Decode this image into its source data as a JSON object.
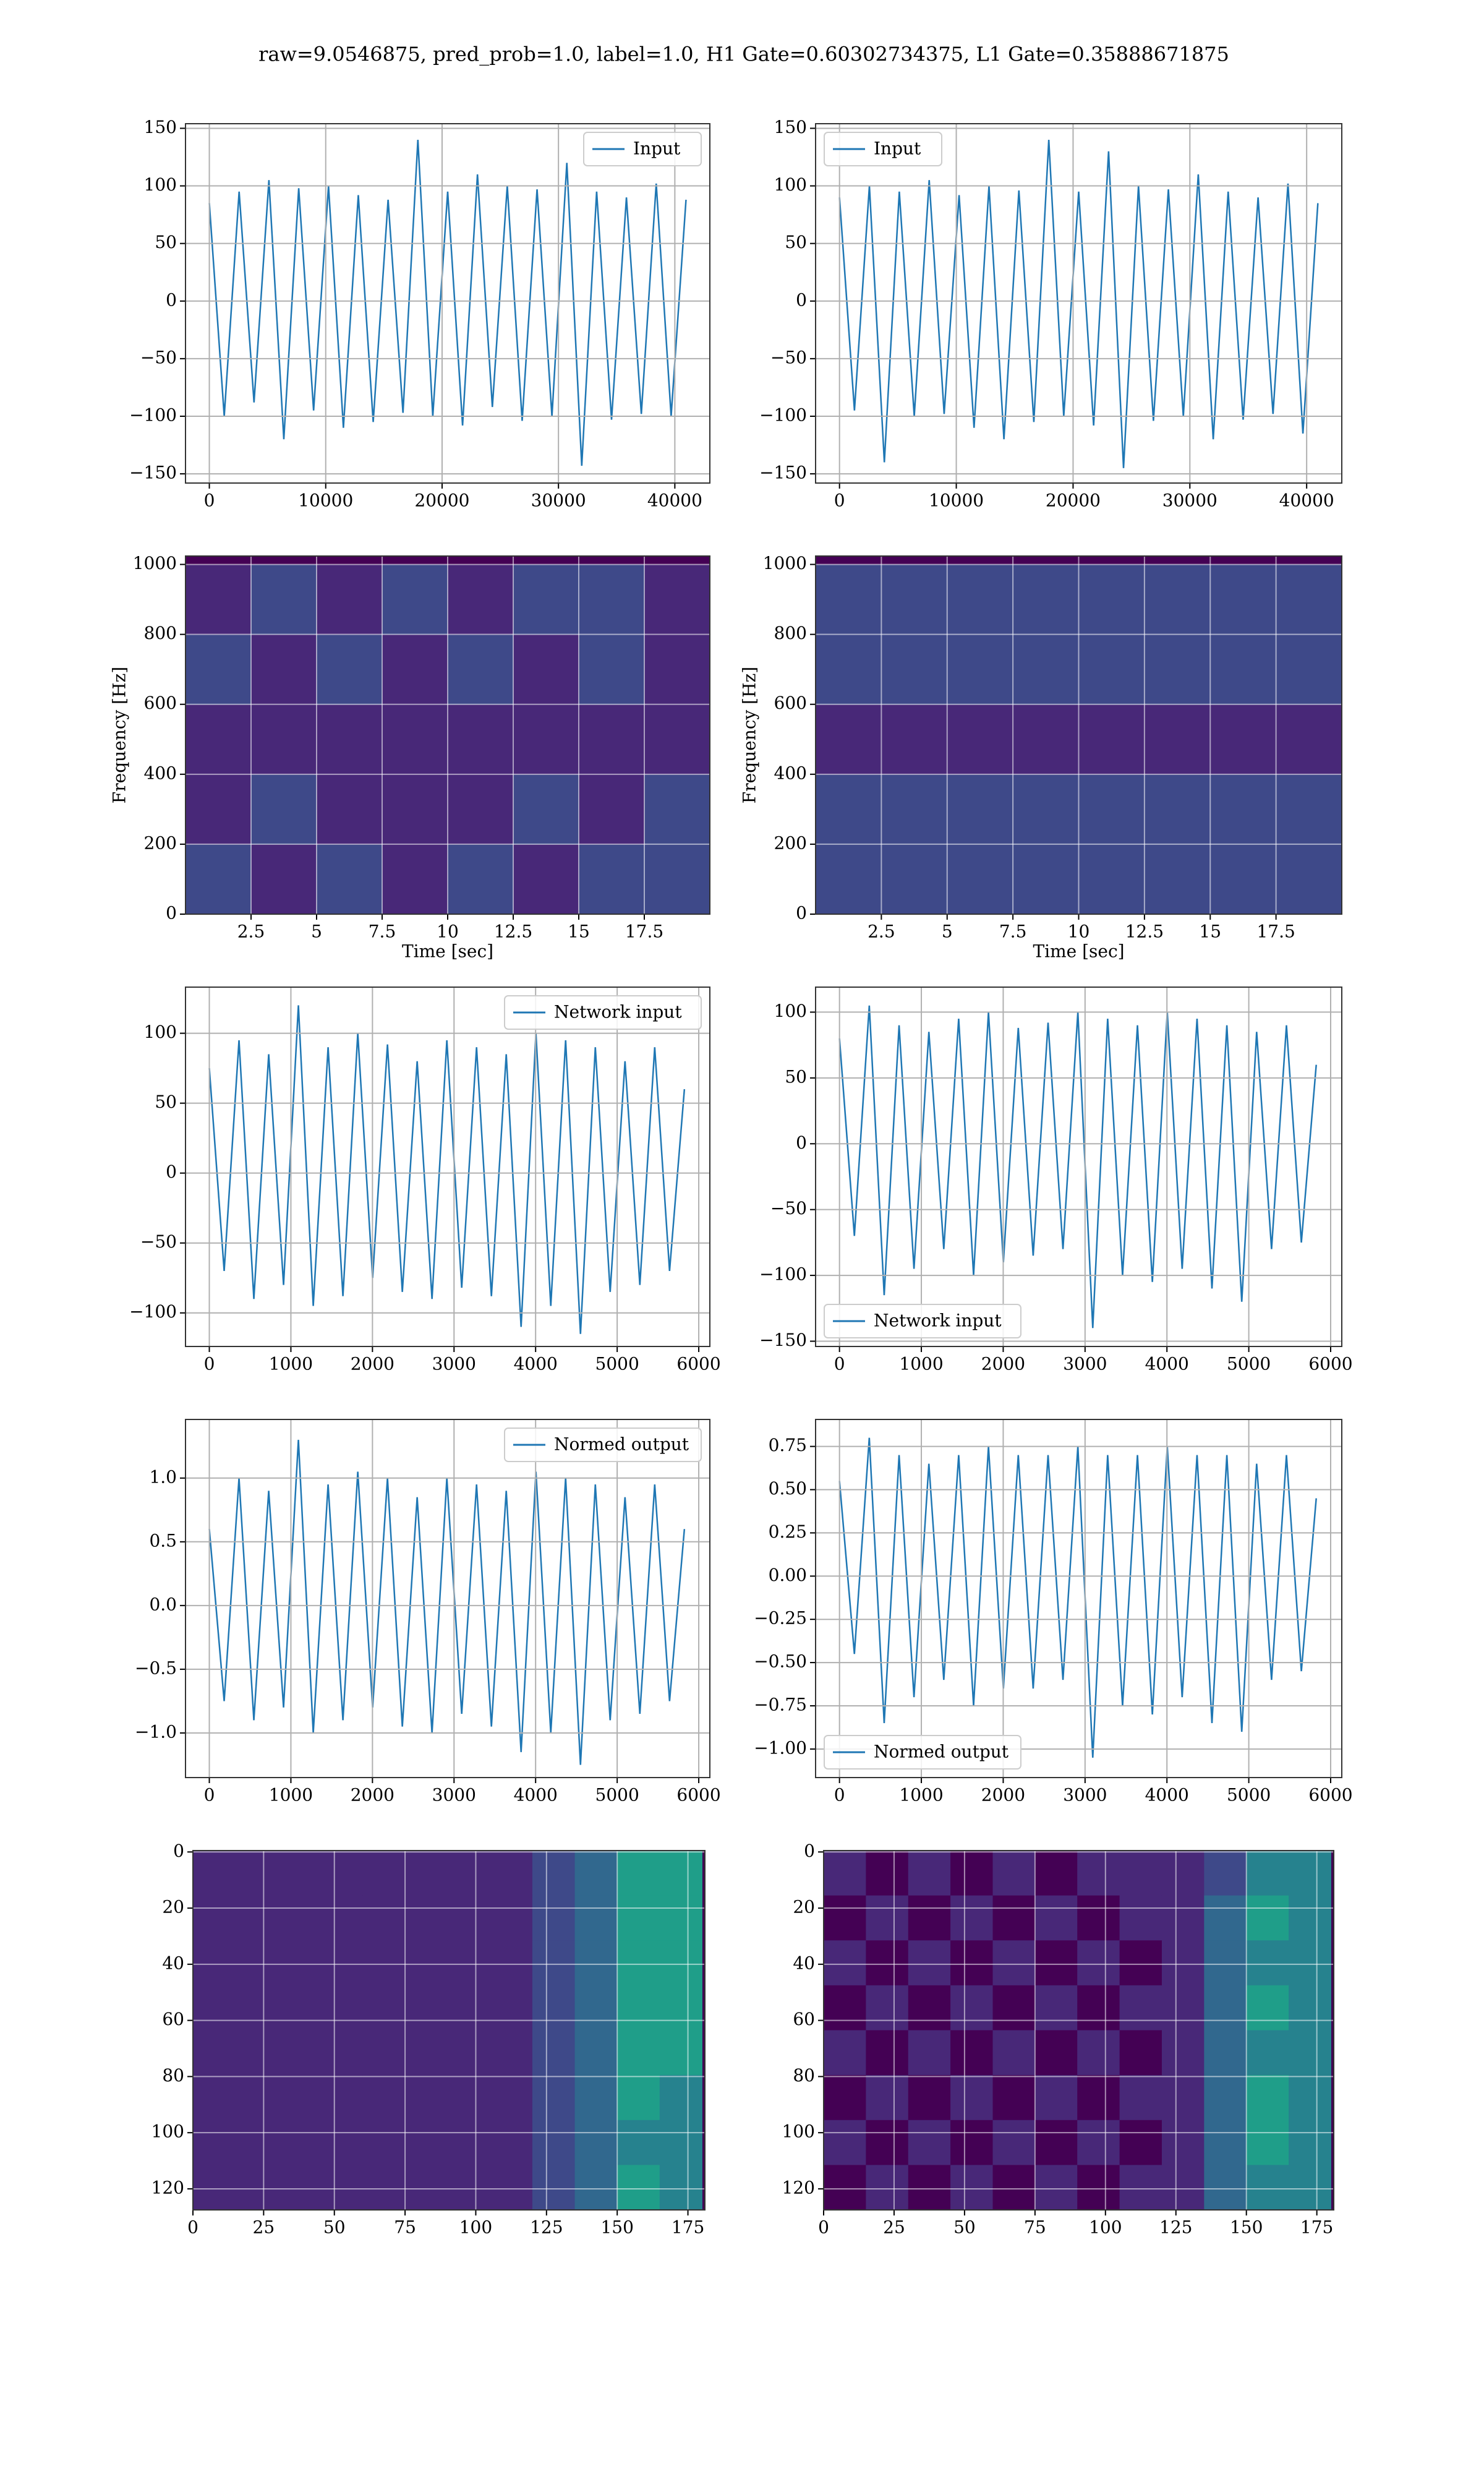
{
  "title": "raw=9.0546875, pred_prob=1.0, label=1.0, H1 Gate=0.60302734375, L1 Gate=0.35888671875",
  "chart_data": [
    {
      "type": "line",
      "legend": "upper right",
      "grid": true,
      "xlim": [
        -2048,
        43008
      ],
      "ylim": [
        -158,
        154
      ],
      "xticks": [
        0,
        10000,
        20000,
        30000,
        40000
      ],
      "yticks": [
        {
          "value": -150,
          "label": "−150"
        },
        {
          "value": -100,
          "label": "−100"
        },
        {
          "value": -50,
          "label": "−50"
        },
        0,
        50,
        100,
        150
      ],
      "x": [
        0,
        1280,
        2560,
        3840,
        5120,
        6400,
        7680,
        8960,
        10240,
        11520,
        12800,
        14080,
        15360,
        16640,
        17920,
        19200,
        20480,
        21760,
        23040,
        24320,
        25600,
        26880,
        28160,
        29440,
        30720,
        32000,
        33280,
        34560,
        35840,
        37120,
        38400,
        39680,
        40960
      ],
      "series": [
        {
          "name": "Input",
          "color": "#1f77b4",
          "values": [
            85,
            -100,
            95,
            -88,
            105,
            -120,
            98,
            -95,
            100,
            -110,
            92,
            -105,
            88,
            -97,
            140,
            -100,
            95,
            -108,
            110,
            -92,
            100,
            -104,
            97,
            -100,
            120,
            -143,
            95,
            -103,
            90,
            -98,
            102,
            -100,
            88
          ]
        }
      ]
    },
    {
      "type": "line",
      "legend": "upper left",
      "grid": true,
      "xlim": [
        -2048,
        43008
      ],
      "ylim": [
        -158,
        154
      ],
      "xticks": [
        0,
        10000,
        20000,
        30000,
        40000
      ],
      "yticks": [
        {
          "value": -150,
          "label": "−150"
        },
        {
          "value": -100,
          "label": "−100"
        },
        {
          "value": -50,
          "label": "−50"
        },
        0,
        50,
        100,
        150
      ],
      "x": [
        0,
        1280,
        2560,
        3840,
        5120,
        6400,
        7680,
        8960,
        10240,
        11520,
        12800,
        14080,
        15360,
        16640,
        17920,
        19200,
        20480,
        21760,
        23040,
        24320,
        25600,
        26880,
        28160,
        29440,
        30720,
        32000,
        33280,
        34560,
        35840,
        37120,
        38400,
        39680,
        40960
      ],
      "series": [
        {
          "name": "Input",
          "color": "#1f77b4",
          "values": [
            90,
            -95,
            100,
            -140,
            95,
            -100,
            105,
            -98,
            92,
            -110,
            100,
            -120,
            96,
            -105,
            140,
            -100,
            95,
            -108,
            130,
            -145,
            100,
            -104,
            97,
            -100,
            110,
            -120,
            95,
            -103,
            90,
            -98,
            102,
            -115,
            85
          ]
        }
      ]
    },
    {
      "type": "heatmap",
      "cmap": "viridis",
      "grid": true,
      "xlabel": "Time [sec]",
      "ylabel": "Frequency [Hz]",
      "xlim": [
        0,
        20
      ],
      "ylim": [
        0,
        1024
      ],
      "zlim": [
        0,
        1
      ],
      "xticks": [
        2.5,
        5.0,
        7.5,
        10.0,
        12.5,
        15.0,
        17.5
      ],
      "yticks": [
        0,
        200,
        400,
        600,
        800,
        1000
      ],
      "x": [
        1.25,
        3.75,
        6.25,
        8.75,
        11.25,
        13.75,
        16.25,
        18.75
      ],
      "y": [
        100,
        300,
        500,
        700,
        900
      ],
      "z": [
        [
          0.18,
          0.16,
          0.17,
          0.15,
          0.17,
          0.16,
          0.18,
          0.22
        ],
        [
          0.16,
          0.17,
          0.15,
          0.16,
          0.15,
          0.17,
          0.16,
          0.18
        ],
        [
          0.14,
          0.13,
          0.14,
          0.13,
          0.14,
          0.13,
          0.14,
          0.14
        ],
        [
          0.17,
          0.16,
          0.17,
          0.16,
          0.18,
          0.16,
          0.17,
          0.16
        ],
        [
          0.16,
          0.17,
          0.16,
          0.17,
          0.16,
          0.18,
          0.17,
          0.16
        ]
      ]
    },
    {
      "type": "heatmap",
      "cmap": "viridis",
      "grid": true,
      "xlabel": "Time [sec]",
      "ylabel": "Frequency [Hz]",
      "xlim": [
        0,
        20
      ],
      "ylim": [
        0,
        1024
      ],
      "zlim": [
        0,
        1
      ],
      "xticks": [
        2.5,
        5.0,
        7.5,
        10.0,
        12.5,
        15.0,
        17.5
      ],
      "yticks": [
        0,
        200,
        400,
        600,
        800,
        1000
      ],
      "x": [
        1.25,
        3.75,
        6.25,
        8.75,
        11.25,
        13.75,
        16.25,
        18.75
      ],
      "y": [
        100,
        300,
        500,
        700,
        900
      ],
      "z": [
        [
          0.19,
          0.18,
          0.17,
          0.18,
          0.17,
          0.19,
          0.2,
          0.26
        ],
        [
          0.18,
          0.19,
          0.17,
          0.18,
          0.17,
          0.19,
          0.2,
          0.19
        ],
        [
          0.14,
          0.15,
          0.14,
          0.15,
          0.14,
          0.15,
          0.14,
          0.15
        ],
        [
          0.18,
          0.2,
          0.18,
          0.17,
          0.18,
          0.19,
          0.2,
          0.18
        ],
        [
          0.17,
          0.19,
          0.18,
          0.19,
          0.18,
          0.2,
          0.19,
          0.18
        ]
      ]
    },
    {
      "type": "line",
      "legend": "upper right",
      "grid": true,
      "xlim": [
        -292,
        6136
      ],
      "ylim": [
        -124,
        133
      ],
      "xticks": [
        0,
        1000,
        2000,
        3000,
        4000,
        5000,
        6000
      ],
      "yticks": [
        {
          "value": -100,
          "label": "−100"
        },
        {
          "value": -50,
          "label": "−50"
        },
        0,
        50,
        100
      ],
      "x": [
        0,
        182,
        364,
        546,
        728,
        910,
        1092,
        1274,
        1456,
        1638,
        1820,
        2002,
        2184,
        2366,
        2548,
        2730,
        2912,
        3094,
        3276,
        3458,
        3640,
        3822,
        4004,
        4186,
        4368,
        4550,
        4732,
        4914,
        5096,
        5278,
        5460,
        5642,
        5824
      ],
      "series": [
        {
          "name": "Network input",
          "color": "#1f77b4",
          "values": [
            75,
            -70,
            95,
            -90,
            85,
            -80,
            120,
            -95,
            90,
            -88,
            100,
            -75,
            92,
            -85,
            80,
            -90,
            95,
            -82,
            90,
            -88,
            85,
            -110,
            100,
            -95,
            95,
            -115,
            90,
            -85,
            80,
            -80,
            90,
            -70,
            60
          ]
        }
      ]
    },
    {
      "type": "line",
      "legend": "lower left",
      "grid": true,
      "xlim": [
        -292,
        6136
      ],
      "ylim": [
        -154,
        119
      ],
      "xticks": [
        0,
        1000,
        2000,
        3000,
        4000,
        5000,
        6000
      ],
      "yticks": [
        {
          "value": -150,
          "label": "−150"
        },
        {
          "value": -100,
          "label": "−100"
        },
        {
          "value": -50,
          "label": "−50"
        },
        0,
        50,
        100
      ],
      "x": [
        0,
        182,
        364,
        546,
        728,
        910,
        1092,
        1274,
        1456,
        1638,
        1820,
        2002,
        2184,
        2366,
        2548,
        2730,
        2912,
        3094,
        3276,
        3458,
        3640,
        3822,
        4004,
        4186,
        4368,
        4550,
        4732,
        4914,
        5096,
        5278,
        5460,
        5642,
        5824
      ],
      "series": [
        {
          "name": "Network input",
          "color": "#1f77b4",
          "values": [
            80,
            -70,
            105,
            -115,
            90,
            -95,
            85,
            -80,
            95,
            -100,
            100,
            -90,
            88,
            -85,
            92,
            -80,
            100,
            -140,
            95,
            -100,
            90,
            -105,
            100,
            -95,
            95,
            -110,
            90,
            -120,
            85,
            -80,
            90,
            -75,
            60
          ]
        }
      ]
    },
    {
      "type": "line",
      "legend": "upper right",
      "grid": true,
      "xlim": [
        -292,
        6136
      ],
      "ylim": [
        -1.35,
        1.46
      ],
      "xticks": [
        0,
        1000,
        2000,
        3000,
        4000,
        5000,
        6000
      ],
      "yticks": [
        {
          "value": -1,
          "label": "−1.0"
        },
        {
          "value": -0.5,
          "label": "−0.5"
        },
        {
          "value": 0,
          "label": "0.0"
        },
        0.5,
        {
          "value": 1,
          "label": "1.0"
        }
      ],
      "x": [
        0,
        182,
        364,
        546,
        728,
        910,
        1092,
        1274,
        1456,
        1638,
        1820,
        2002,
        2184,
        2366,
        2548,
        2730,
        2912,
        3094,
        3276,
        3458,
        3640,
        3822,
        4004,
        4186,
        4368,
        4550,
        4732,
        4914,
        5096,
        5278,
        5460,
        5642,
        5824
      ],
      "series": [
        {
          "name": "Normed output",
          "color": "#1f77b4",
          "values": [
            0.6,
            -0.75,
            1.0,
            -0.9,
            0.9,
            -0.8,
            1.3,
            -1.0,
            0.95,
            -0.9,
            1.05,
            -0.8,
            1.0,
            -0.95,
            0.85,
            -1.0,
            1.0,
            -0.85,
            0.95,
            -0.95,
            0.9,
            -1.15,
            1.05,
            -1.0,
            1.0,
            -1.25,
            0.95,
            -0.9,
            0.85,
            -0.85,
            0.95,
            -0.75,
            0.6
          ]
        }
      ]
    },
    {
      "type": "line",
      "legend": "lower left",
      "grid": true,
      "xlim": [
        -292,
        6136
      ],
      "ylim": [
        -1.165,
        0.906
      ],
      "xticks": [
        0,
        1000,
        2000,
        3000,
        4000,
        5000,
        6000
      ],
      "yticks": [
        {
          "value": -1,
          "label": "−1.00"
        },
        {
          "value": -0.75,
          "label": "−0.75"
        },
        {
          "value": -0.5,
          "label": "−0.50"
        },
        {
          "value": -0.25,
          "label": "−0.25"
        },
        {
          "value": 0,
          "label": "0.00"
        },
        0.25,
        {
          "value": 0.5,
          "label": "0.50"
        },
        0.75
      ],
      "x": [
        0,
        182,
        364,
        546,
        728,
        910,
        1092,
        1274,
        1456,
        1638,
        1820,
        2002,
        2184,
        2366,
        2548,
        2730,
        2912,
        3094,
        3276,
        3458,
        3640,
        3822,
        4004,
        4186,
        4368,
        4550,
        4732,
        4914,
        5096,
        5278,
        5460,
        5642,
        5824
      ],
      "series": [
        {
          "name": "Normed output",
          "color": "#1f77b4",
          "values": [
            0.55,
            -0.45,
            0.8,
            -0.85,
            0.7,
            -0.7,
            0.65,
            -0.6,
            0.7,
            -0.75,
            0.75,
            -0.65,
            0.7,
            -0.65,
            0.7,
            -0.6,
            0.75,
            -1.05,
            0.7,
            -0.75,
            0.7,
            -0.8,
            0.75,
            -0.7,
            0.7,
            -0.85,
            0.7,
            -0.9,
            0.65,
            -0.6,
            0.7,
            -0.55,
            0.45
          ]
        }
      ]
    },
    {
      "type": "heatmap",
      "cmap": "viridis",
      "grid": true,
      "xlim": [
        0,
        181
      ],
      "ylim": [
        127.5,
        -0.5
      ],
      "zlim": [
        0,
        1
      ],
      "xticks": [
        0,
        25,
        50,
        75,
        100,
        125,
        150,
        175
      ],
      "yticks": [
        0,
        20,
        40,
        60,
        80,
        100,
        120
      ],
      "x": [
        7.5,
        22.5,
        37.5,
        52.5,
        67.5,
        82.5,
        97.5,
        112.5,
        127.5,
        142.5,
        157.5,
        172.5
      ],
      "y": [
        7.5,
        23.5,
        39.5,
        55.5,
        71.5,
        87.5,
        103.5,
        119.5
      ],
      "z": [
        [
          0.15,
          0.15,
          0.15,
          0.15,
          0.15,
          0.15,
          0.15,
          0.15,
          0.2,
          0.35,
          0.5,
          0.55
        ],
        [
          0.15,
          0.12,
          0.15,
          0.14,
          0.15,
          0.13,
          0.15,
          0.15,
          0.2,
          0.3,
          0.55,
          0.6
        ],
        [
          0.12,
          0.15,
          0.13,
          0.15,
          0.12,
          0.15,
          0.14,
          0.15,
          0.18,
          0.3,
          0.5,
          0.5
        ],
        [
          0.15,
          0.13,
          0.15,
          0.12,
          0.15,
          0.14,
          0.13,
          0.15,
          0.2,
          0.35,
          0.6,
          0.55
        ],
        [
          0.13,
          0.15,
          0.12,
          0.15,
          0.13,
          0.15,
          0.15,
          0.14,
          0.18,
          0.3,
          0.55,
          0.5
        ],
        [
          0.15,
          0.14,
          0.15,
          0.13,
          0.15,
          0.12,
          0.15,
          0.15,
          0.2,
          0.32,
          0.5,
          0.45
        ],
        [
          0.14,
          0.15,
          0.13,
          0.15,
          0.14,
          0.15,
          0.13,
          0.15,
          0.18,
          0.3,
          0.45,
          0.45
        ],
        [
          0.15,
          0.13,
          0.15,
          0.14,
          0.15,
          0.13,
          0.15,
          0.14,
          0.2,
          0.35,
          0.5,
          0.4
        ]
      ]
    },
    {
      "type": "heatmap",
      "cmap": "viridis",
      "grid": true,
      "xlim": [
        0,
        181
      ],
      "ylim": [
        127.5,
        -0.5
      ],
      "zlim": [
        0,
        1
      ],
      "xticks": [
        0,
        25,
        50,
        75,
        100,
        125,
        150,
        175
      ],
      "yticks": [
        0,
        20,
        40,
        60,
        80,
        100,
        120
      ],
      "x": [
        7.5,
        22.5,
        37.5,
        52.5,
        67.5,
        82.5,
        97.5,
        112.5,
        127.5,
        142.5,
        157.5,
        172.5
      ],
      "y": [
        7.5,
        23.5,
        39.5,
        55.5,
        71.5,
        87.5,
        103.5,
        119.5
      ],
      "z": [
        [
          0.06,
          0.05,
          0.06,
          0.05,
          0.06,
          0.05,
          0.06,
          0.06,
          0.1,
          0.25,
          0.45,
          0.4
        ],
        [
          0.05,
          0.06,
          0.05,
          0.06,
          0.05,
          0.06,
          0.05,
          0.06,
          0.12,
          0.3,
          0.5,
          0.45
        ],
        [
          0.06,
          0.05,
          0.06,
          0.05,
          0.06,
          0.05,
          0.06,
          0.05,
          0.1,
          0.28,
          0.45,
          0.4
        ],
        [
          0.05,
          0.06,
          0.05,
          0.06,
          0.05,
          0.06,
          0.05,
          0.06,
          0.12,
          0.3,
          0.55,
          0.45
        ],
        [
          0.06,
          0.05,
          0.06,
          0.05,
          0.06,
          0.05,
          0.06,
          0.05,
          0.1,
          0.3,
          0.45,
          0.4
        ],
        [
          0.05,
          0.06,
          0.05,
          0.06,
          0.05,
          0.06,
          0.05,
          0.06,
          0.12,
          0.28,
          0.5,
          0.42
        ],
        [
          0.06,
          0.05,
          0.06,
          0.05,
          0.06,
          0.05,
          0.06,
          0.05,
          0.1,
          0.3,
          0.55,
          0.45
        ],
        [
          0.05,
          0.06,
          0.05,
          0.06,
          0.05,
          0.06,
          0.05,
          0.06,
          0.12,
          0.28,
          0.45,
          0.4
        ]
      ]
    }
  ]
}
